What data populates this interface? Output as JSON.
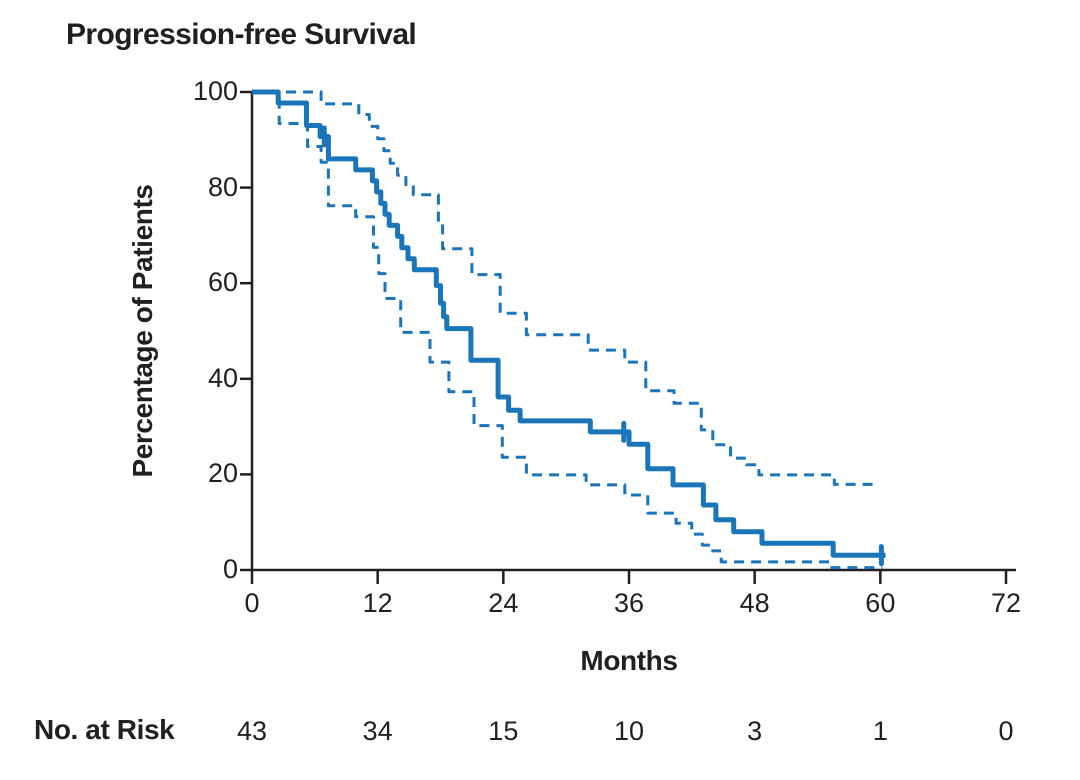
{
  "title": "Progression-free Survival",
  "y_axis": {
    "label": "Percentage of Patients",
    "tick_labels": [
      "100",
      "80",
      "60",
      "40",
      "20",
      "0"
    ],
    "tick_values": [
      100,
      80,
      60,
      40,
      20,
      0
    ]
  },
  "x_axis": {
    "label": "Months",
    "tick_labels": [
      "0",
      "12",
      "24",
      "36",
      "48",
      "60",
      "72"
    ],
    "tick_values": [
      0,
      12,
      24,
      36,
      48,
      60,
      72
    ]
  },
  "risk_table": {
    "label": "No. at Risk",
    "counts": [
      "43",
      "34",
      "15",
      "10",
      "3",
      "1",
      "0"
    ],
    "months": [
      0,
      12,
      24,
      36,
      48,
      60,
      72
    ]
  },
  "colors": {
    "curve_blue": "#1b75bb",
    "axis_black": "#231f20",
    "text": "#231f20",
    "background": "#ffffff"
  },
  "chart_data": {
    "type": "line",
    "subtype": "kaplan-meier-step",
    "title": "Progression-free Survival",
    "xlabel": "Months",
    "ylabel": "Percentage of Patients",
    "xlim": [
      0,
      72
    ],
    "ylim": [
      0,
      100
    ],
    "grid": false,
    "legend": "none",
    "series": [
      {
        "name": "PFS estimate",
        "style": "solid",
        "line_width": 5,
        "end_month": 60.5,
        "points": [
          [
            0,
            100
          ],
          [
            2.5,
            97.7
          ],
          [
            5.2,
            93.0
          ],
          [
            6.5,
            90.7
          ],
          [
            7.3,
            86.0
          ],
          [
            9.9,
            83.7
          ],
          [
            11.5,
            81.4
          ],
          [
            11.9,
            79.1
          ],
          [
            12.3,
            76.7
          ],
          [
            12.7,
            74.4
          ],
          [
            13.1,
            72.1
          ],
          [
            13.9,
            69.8
          ],
          [
            14.3,
            67.4
          ],
          [
            14.9,
            65.1
          ],
          [
            15.5,
            62.8
          ],
          [
            17.6,
            59.5
          ],
          [
            18.0,
            55.8
          ],
          [
            18.3,
            53.0
          ],
          [
            18.6,
            50.5
          ],
          [
            20.9,
            43.9
          ],
          [
            23.5,
            36.2
          ],
          [
            24.5,
            33.4
          ],
          [
            25.6,
            31.2
          ],
          [
            32.3,
            28.9
          ],
          [
            36.0,
            26.3
          ],
          [
            37.8,
            21.2
          ],
          [
            40.2,
            17.8
          ],
          [
            43.1,
            13.6
          ],
          [
            44.3,
            10.5
          ],
          [
            46.0,
            8.0
          ],
          [
            48.7,
            5.6
          ],
          [
            55.5,
            3.1
          ]
        ]
      },
      {
        "name": "95% CI upper",
        "style": "dashed",
        "line_width": 3,
        "end_month": 59.5,
        "points": [
          [
            0,
            100
          ],
          [
            6.6,
            97.5
          ],
          [
            10.2,
            95.3
          ],
          [
            11.2,
            92.8
          ],
          [
            12.0,
            90.2
          ],
          [
            12.6,
            87.7
          ],
          [
            13.2,
            85.1
          ],
          [
            13.9,
            82.6
          ],
          [
            14.7,
            80.2
          ],
          [
            15.4,
            78.5
          ],
          [
            17.8,
            72.8
          ],
          [
            18.2,
            67.2
          ],
          [
            21.0,
            61.8
          ],
          [
            23.7,
            53.7
          ],
          [
            26.2,
            49.2
          ],
          [
            32.1,
            46.0
          ],
          [
            35.6,
            43.5
          ],
          [
            37.6,
            37.5
          ],
          [
            40.3,
            34.9
          ],
          [
            42.9,
            29.3
          ],
          [
            44.0,
            26.2
          ],
          [
            45.7,
            23.4
          ],
          [
            47.2,
            22.0
          ],
          [
            48.4,
            19.9
          ],
          [
            55.6,
            17.9
          ]
        ]
      },
      {
        "name": "95% CI lower",
        "style": "dashed",
        "line_width": 3,
        "end_month": 60.2,
        "points": [
          [
            0,
            100
          ],
          [
            2.6,
            93.4
          ],
          [
            5.3,
            88.6
          ],
          [
            6.6,
            85.3
          ],
          [
            7.3,
            76.2
          ],
          [
            9.9,
            73.9
          ],
          [
            11.6,
            67.5
          ],
          [
            12.1,
            62.0
          ],
          [
            12.7,
            56.8
          ],
          [
            14.2,
            49.7
          ],
          [
            17.0,
            43.5
          ],
          [
            18.8,
            37.3
          ],
          [
            21.2,
            30.2
          ],
          [
            23.9,
            23.6
          ],
          [
            26.2,
            19.9
          ],
          [
            31.9,
            17.8
          ],
          [
            35.6,
            15.7
          ],
          [
            37.8,
            11.9
          ],
          [
            40.5,
            9.8
          ],
          [
            42.0,
            7.5
          ],
          [
            43.0,
            5.2
          ],
          [
            44.0,
            4.0
          ],
          [
            44.8,
            1.7
          ],
          [
            55.2,
            0.5
          ]
        ]
      }
    ],
    "censor_marks": [
      [
        6.9,
        90.7
      ],
      [
        35.5,
        28.9
      ],
      [
        60.1,
        3.1
      ]
    ],
    "no_at_risk": {
      "label": "No. at Risk",
      "months": [
        0,
        12,
        24,
        36,
        48,
        60,
        72
      ],
      "counts": [
        43,
        34,
        15,
        10,
        3,
        1,
        0
      ]
    }
  }
}
